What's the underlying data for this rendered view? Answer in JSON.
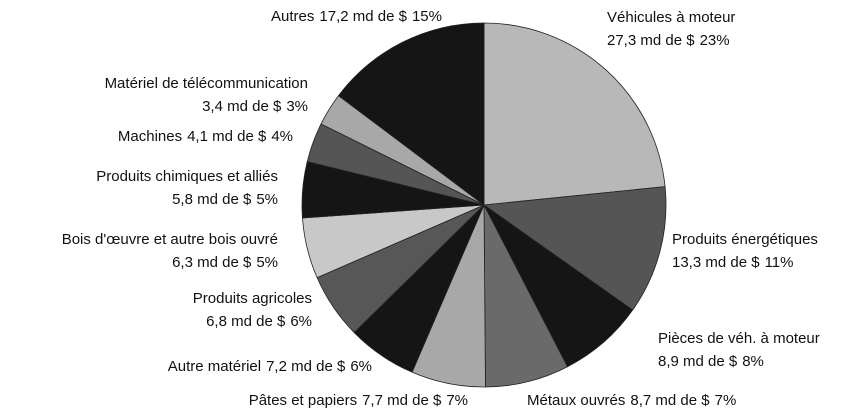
{
  "chart_data": {
    "type": "pie",
    "categories": [
      "Véhicules à moteur",
      "Produits énergétiques",
      "Pièces de véh. à moteur",
      "Métaux ouvrés",
      "Pâtes et papiers",
      "Autre matériel",
      "Produits agricoles",
      "Bois d'œuvre et autre bois ouvré",
      "Produits chimiques et alliés",
      "Machines",
      "Matériel de télécommunication",
      "Autres"
    ],
    "values": [
      27.3,
      13.3,
      8.9,
      8.7,
      7.7,
      7.2,
      6.8,
      6.3,
      5.8,
      4.1,
      3.4,
      17.2
    ],
    "value_labels": [
      "27,3 md de $",
      "13,3 md de $",
      "8,9 md de $",
      "8,7 md de $",
      "7,7 md de $",
      "7,2 md de $",
      "6,8 md de $",
      "6,3 md de $",
      "5,8 md de $",
      "4,1 md de $",
      "3,4 md de $",
      "17,2 md de $"
    ],
    "shares": [
      23,
      11,
      8,
      7,
      7,
      6,
      6,
      5,
      5,
      4,
      3,
      15
    ],
    "share_labels": [
      "23%",
      "11%",
      "8%",
      "7%",
      "7%",
      "6%",
      "6%",
      "5%",
      "5%",
      "4%",
      "3%",
      "15%"
    ],
    "colors": [
      "#b8b8b8",
      "#555555",
      "#151515",
      "#6a6a6a",
      "#a8a8a8",
      "#151515",
      "#575757",
      "#c8c8c8",
      "#151515",
      "#555555",
      "#a8a8a8",
      "#151515"
    ]
  }
}
